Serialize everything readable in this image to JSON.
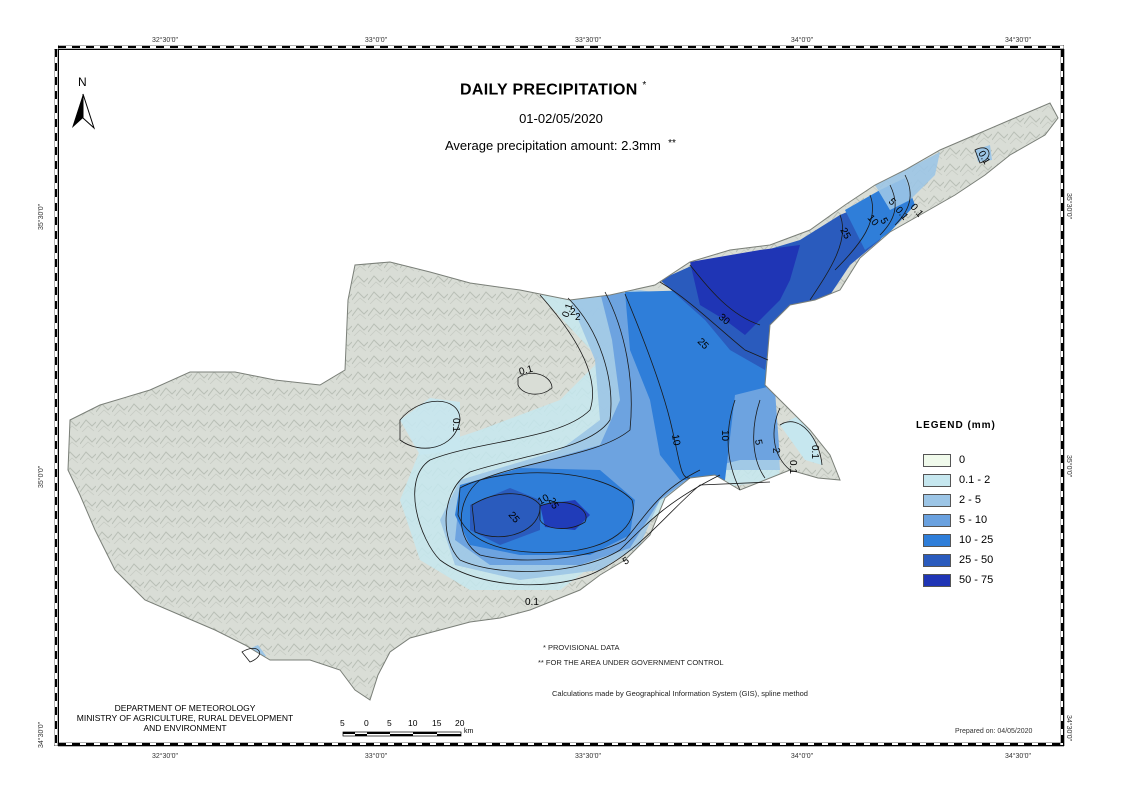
{
  "title": "DAILY PRECIPITATION",
  "title_mark": "*",
  "date": "01-02/05/2020",
  "average": {
    "text": "Average precipitation amount: 2.3mm",
    "mark": "**"
  },
  "north_label": "N",
  "graticule": {
    "top": [
      "32°30'0\"",
      "33°0'0\"",
      "33°30'0\"",
      "34°0'0\"",
      "34°30'0\""
    ],
    "bottom": [
      "32°30'0\"",
      "33°0'0\"",
      "33°30'0\"",
      "34°0'0\"",
      "34°30'0\""
    ],
    "left": [
      "35°30'0\"",
      "35°0'0\"",
      "34°30'0\""
    ],
    "right": [
      "35°30'0\"",
      "35°0'0\"",
      "34°30'0\""
    ]
  },
  "legend": {
    "title": "LEGEND (mm)",
    "items": [
      {
        "label": "0",
        "color": "#f0faeb"
      },
      {
        "label": "0.1 - 2",
        "color": "#c6e7ef"
      },
      {
        "label": "2 - 5",
        "color": "#9cc5e6"
      },
      {
        "label": "5 - 10",
        "color": "#6aa1df"
      },
      {
        "label": "10 - 25",
        "color": "#2f7ed9"
      },
      {
        "label": "25 - 50",
        "color": "#2a5bbd"
      },
      {
        "label": "50 - 75",
        "color": "#1f35b5"
      }
    ]
  },
  "contour_labels": [
    "0.1",
    "2",
    "5",
    "10",
    "25",
    "30",
    "0.1",
    "10",
    "5",
    "2",
    "0.1",
    "0.1",
    "10",
    "25",
    "25",
    "5",
    "0.1",
    "0.1",
    "0.1",
    "5",
    "10",
    "25",
    "2",
    "0.1",
    "0.1"
  ],
  "notes": {
    "provisional": "* PROVISIONAL DATA",
    "government": "** FOR THE AREA UNDER GOVERNMENT CONTROL",
    "method": "Calculations made by Geographical Information System (GIS), spline method"
  },
  "department": [
    "DEPARTMENT OF METEOROLOGY",
    "MINISTRY OF AGRICULTURE, RURAL DEVELOPMENT",
    "AND ENVIRONMENT"
  ],
  "scale": {
    "labels": [
      "5",
      "0",
      "5",
      "10",
      "15",
      "20"
    ],
    "unit": "km"
  },
  "prepared": "Prepared on: 04/05/2020"
}
